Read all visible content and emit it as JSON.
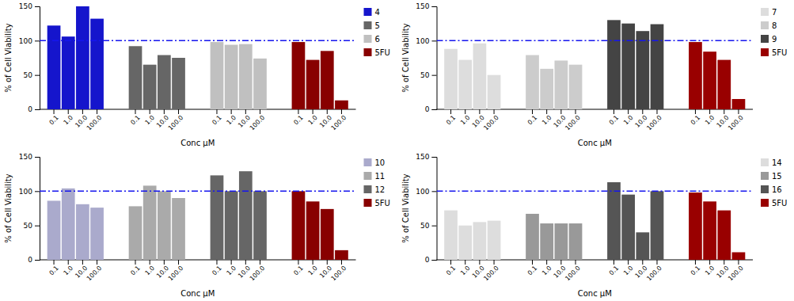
{
  "chart_data": [
    {
      "type": "bar",
      "categories": [
        "0.1",
        "1.0",
        "10.0",
        "100.0"
      ],
      "series": [
        {
          "name": "4",
          "color": "#1515CC",
          "values": [
            122,
            106,
            150,
            132
          ]
        },
        {
          "name": "5",
          "color": "#666666",
          "values": [
            92,
            65,
            79,
            75
          ]
        },
        {
          "name": "6",
          "color": "#C0C0C0",
          "values": [
            98,
            94,
            95,
            74
          ]
        },
        {
          "name": "5FU",
          "color": "#880000",
          "values": [
            98,
            72,
            85,
            13
          ]
        }
      ],
      "ylabel": "% of Cell Viability",
      "xlabel": "Conc μM",
      "ylim": [
        0,
        150
      ],
      "yticks": [
        0,
        50,
        100,
        150
      ],
      "grid": false,
      "legend": "right",
      "reference_line": {
        "value": 100,
        "color": "#1515EE",
        "line_style": "dashdot"
      }
    },
    {
      "type": "bar",
      "categories": [
        "0.1",
        "1.0",
        "10.0",
        "100.0"
      ],
      "series": [
        {
          "name": "7",
          "color": "#DDDDDD",
          "values": [
            88,
            72,
            96,
            50
          ]
        },
        {
          "name": "8",
          "color": "#CCCCCC",
          "values": [
            79,
            59,
            71,
            65
          ]
        },
        {
          "name": "9",
          "color": "#444444",
          "values": [
            130,
            125,
            114,
            124
          ]
        },
        {
          "name": "5FU",
          "color": "#990000",
          "values": [
            98,
            84,
            72,
            15
          ]
        }
      ],
      "ylabel": "% of Cell Viability",
      "xlabel": "Conc μM",
      "ylim": [
        0,
        150
      ],
      "yticks": [
        0,
        50,
        100,
        150
      ],
      "grid": false,
      "legend": "right",
      "reference_line": {
        "value": 100,
        "color": "#1515EE",
        "line_style": "dashdot"
      }
    },
    {
      "type": "bar",
      "categories": [
        "0.1",
        "1.0",
        "10.0",
        "100.0"
      ],
      "series": [
        {
          "name": "10",
          "color": "#AAAACC",
          "values": [
            86,
            104,
            81,
            76
          ]
        },
        {
          "name": "11",
          "color": "#AAAAAA",
          "values": [
            78,
            108,
            100,
            90
          ]
        },
        {
          "name": "12",
          "color": "#666666",
          "values": [
            123,
            100,
            129,
            100
          ]
        },
        {
          "name": "5FU",
          "color": "#880000",
          "values": [
            100,
            85,
            74,
            14
          ]
        }
      ],
      "ylabel": "% of Cell Viability",
      "xlabel": "Conc μM",
      "ylim": [
        0,
        150
      ],
      "yticks": [
        0,
        50,
        100,
        150
      ],
      "grid": false,
      "legend": "right",
      "reference_line": {
        "value": 100,
        "color": "#1515EE",
        "line_style": "dashdot"
      }
    },
    {
      "type": "bar",
      "categories": [
        "0.1",
        "1.0",
        "10.0",
        "100.0"
      ],
      "series": [
        {
          "name": "14",
          "color": "#DDDDDD",
          "values": [
            72,
            50,
            55,
            57
          ]
        },
        {
          "name": "15",
          "color": "#999999",
          "values": [
            67,
            53,
            53,
            53
          ]
        },
        {
          "name": "16",
          "color": "#555555",
          "values": [
            113,
            95,
            40,
            100
          ]
        },
        {
          "name": "5FU",
          "color": "#990000",
          "values": [
            98,
            85,
            72,
            11
          ]
        }
      ],
      "ylabel": "% of Cell Viability",
      "xlabel": "Conc μM",
      "ylim": [
        0,
        150
      ],
      "yticks": [
        0,
        50,
        100,
        150
      ],
      "grid": false,
      "legend": "right",
      "reference_line": {
        "value": 100,
        "color": "#1515EE",
        "line_style": "dashdot"
      }
    }
  ]
}
